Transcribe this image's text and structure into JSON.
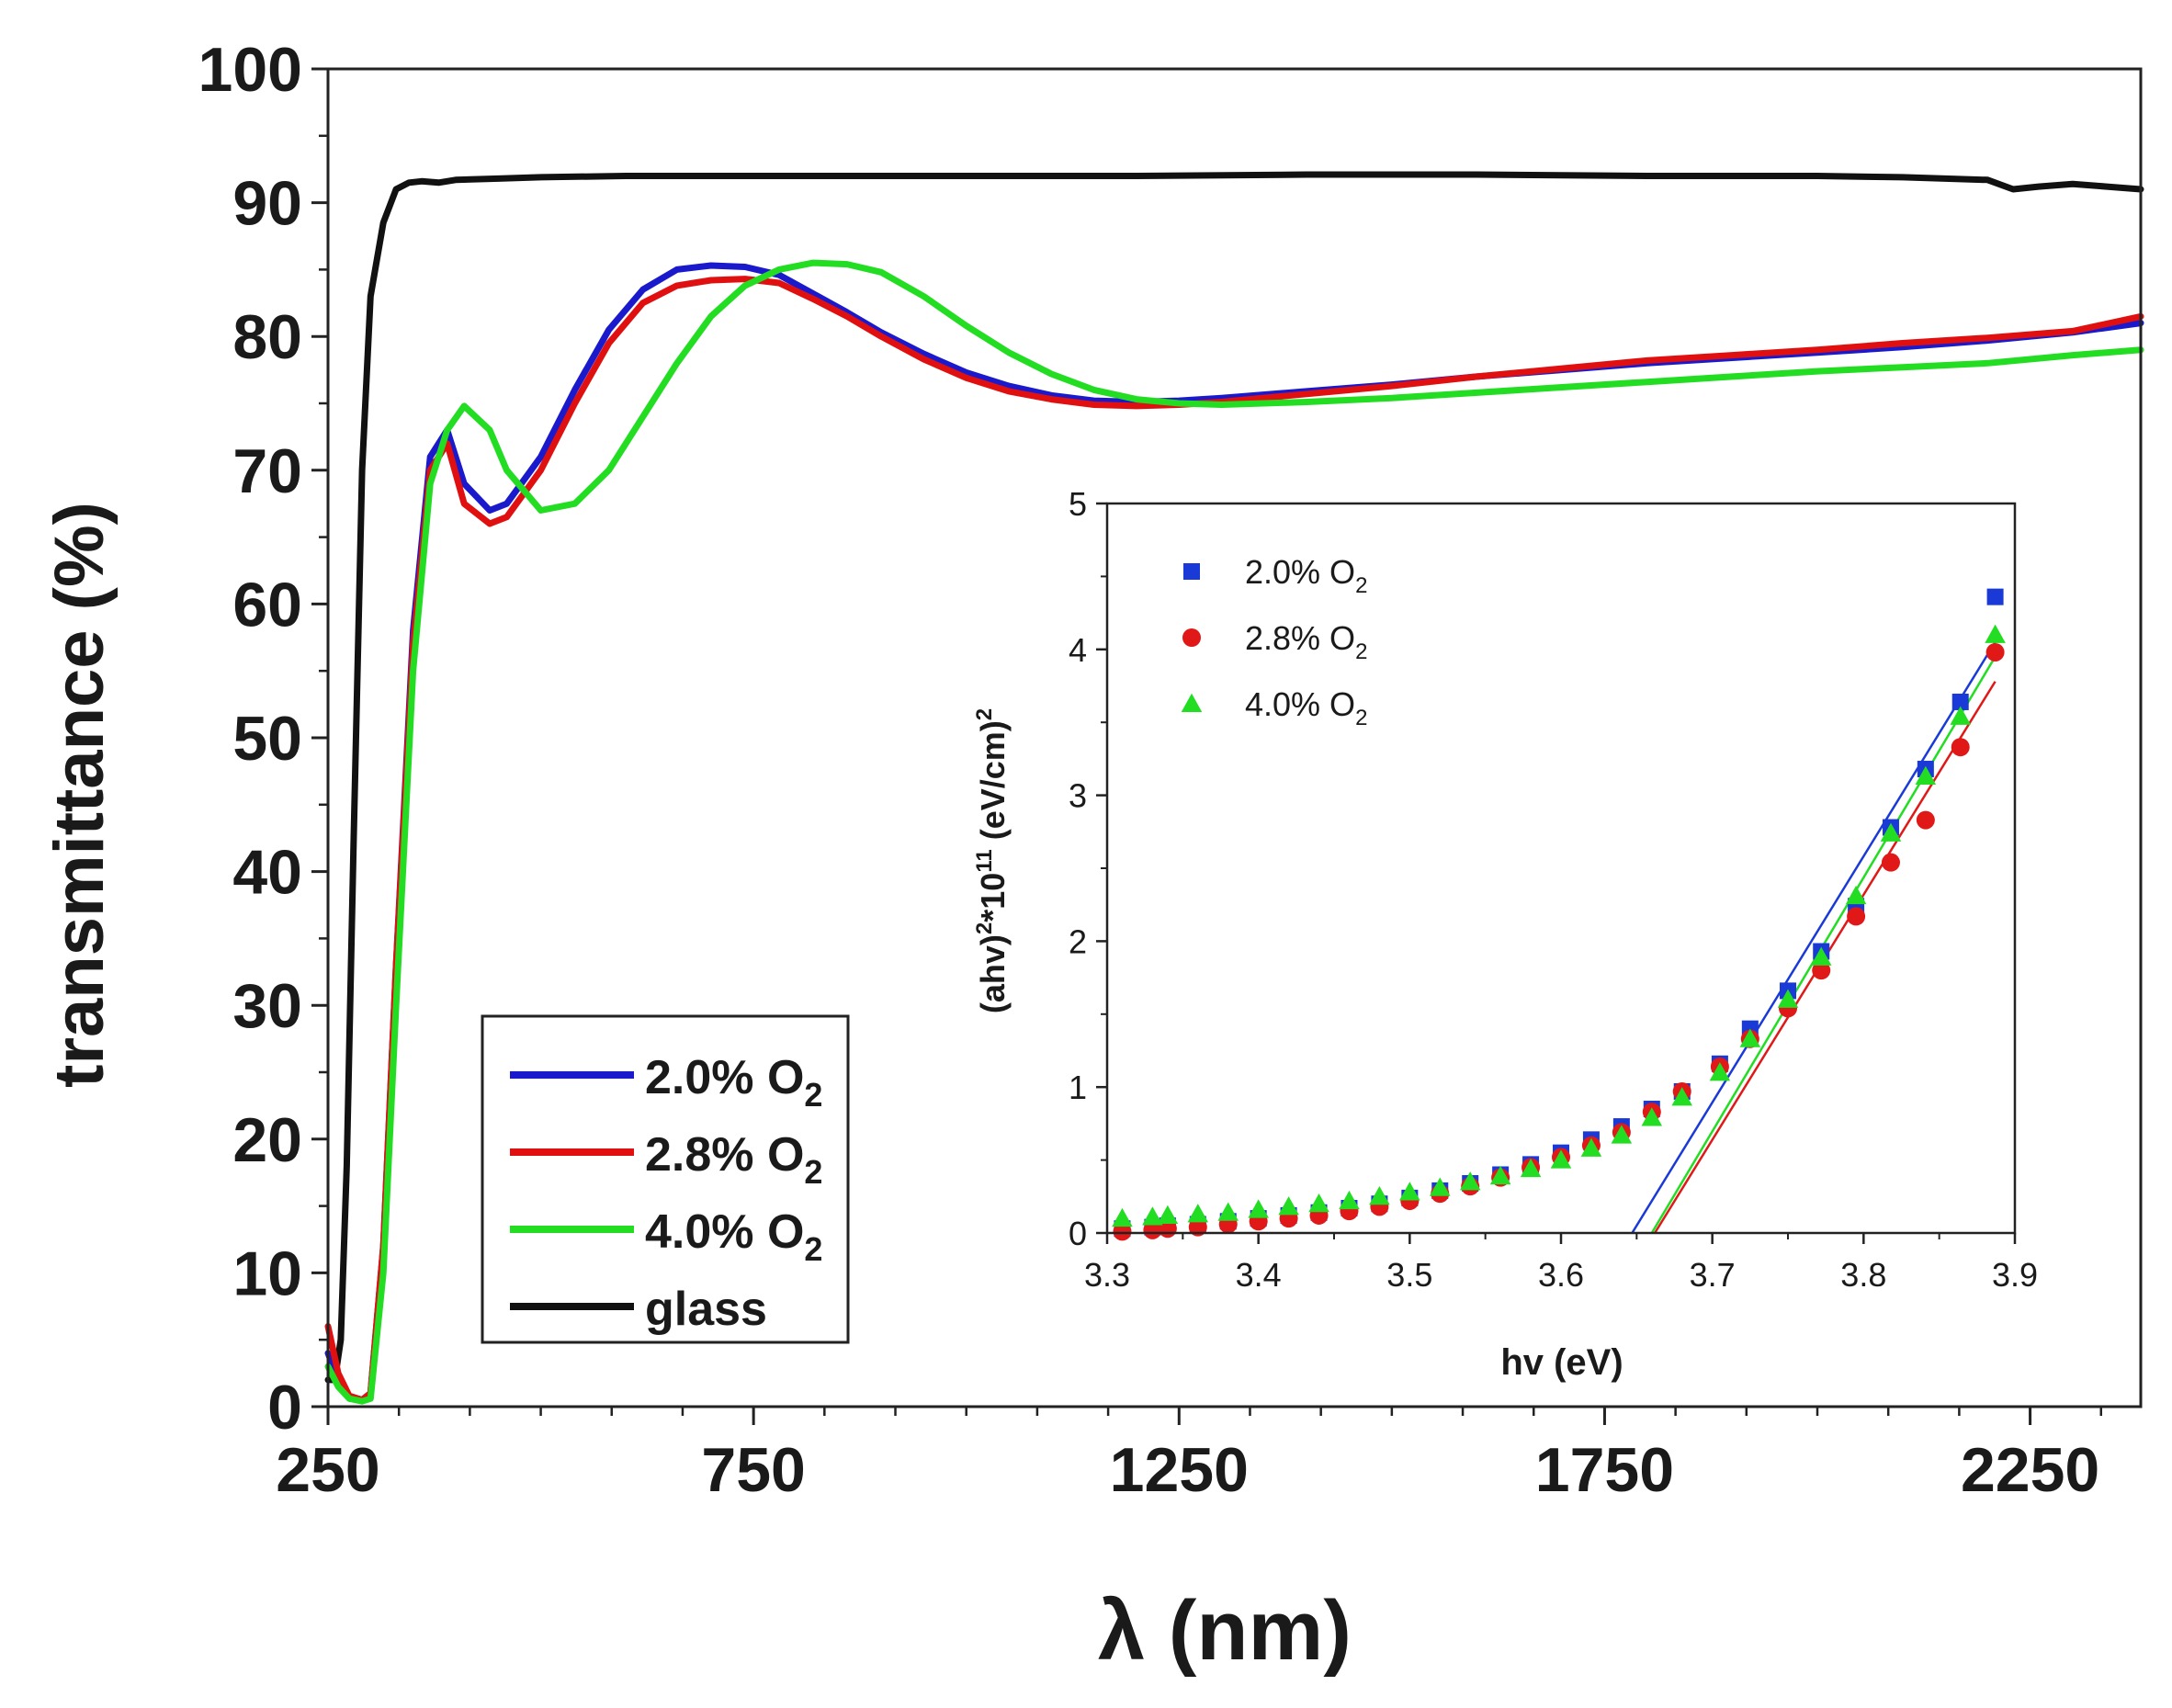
{
  "chart_data": [
    {
      "type": "line",
      "title": "",
      "xlabel": "λ (nm)",
      "ylabel": "transmittance (%)",
      "xlim": [
        250,
        2380
      ],
      "ylim": [
        0,
        100
      ],
      "x_ticks": [
        250,
        750,
        1250,
        1750,
        2250
      ],
      "y_ticks": [
        0,
        10,
        20,
        30,
        40,
        50,
        60,
        70,
        80,
        90,
        100
      ],
      "legend_position": "bottom-left",
      "series": [
        {
          "name": "2.0% O2",
          "label_main": "2.0% O",
          "label_sub": "2",
          "color": "#1a1acc",
          "x": [
            250,
            262,
            275,
            290,
            300,
            315,
            330,
            350,
            370,
            390,
            410,
            440,
            460,
            500,
            540,
            580,
            620,
            660,
            700,
            740,
            780,
            820,
            860,
            900,
            950,
            1000,
            1050,
            1100,
            1150,
            1200,
            1250,
            1300,
            1400,
            1500,
            1600,
            1700,
            1800,
            1900,
            2000,
            2100,
            2200,
            2300,
            2380
          ],
          "y": [
            4,
            2,
            0.8,
            0.5,
            1,
            12,
            33,
            58,
            71,
            73,
            69,
            67,
            67.5,
            71,
            76,
            80.5,
            83.5,
            85,
            85.3,
            85.2,
            84.6,
            83.2,
            81.8,
            80.3,
            78.7,
            77.3,
            76.3,
            75.6,
            75.2,
            75.1,
            75.2,
            75.4,
            75.9,
            76.4,
            77,
            77.5,
            78,
            78.4,
            78.8,
            79.2,
            79.7,
            80.3,
            81
          ]
        },
        {
          "name": "2.8% O2",
          "label_main": "2.8% O",
          "label_sub": "2",
          "color": "#e01010",
          "x": [
            250,
            262,
            275,
            290,
            300,
            315,
            330,
            350,
            370,
            390,
            410,
            440,
            460,
            500,
            540,
            580,
            620,
            660,
            700,
            740,
            780,
            820,
            860,
            900,
            950,
            1000,
            1050,
            1100,
            1150,
            1200,
            1250,
            1300,
            1400,
            1500,
            1600,
            1700,
            1800,
            1900,
            2000,
            2100,
            2200,
            2300,
            2380
          ],
          "y": [
            6,
            2.5,
            0.8,
            0.5,
            1,
            12,
            33,
            57,
            70,
            72,
            67.5,
            66,
            66.5,
            70,
            75,
            79.5,
            82.5,
            83.8,
            84.2,
            84.3,
            84,
            82.8,
            81.5,
            80,
            78.3,
            76.9,
            75.9,
            75.3,
            74.9,
            74.8,
            74.9,
            75.1,
            75.7,
            76.3,
            77,
            77.6,
            78.2,
            78.6,
            79,
            79.5,
            79.9,
            80.4,
            81.5
          ]
        },
        {
          "name": "4.0% O2",
          "label_main": "4.0% O",
          "label_sub": "2",
          "color": "#22dd22",
          "x": [
            250,
            262,
            275,
            290,
            300,
            315,
            330,
            350,
            370,
            390,
            410,
            440,
            460,
            500,
            540,
            580,
            620,
            660,
            700,
            740,
            780,
            820,
            860,
            900,
            950,
            1000,
            1050,
            1100,
            1150,
            1200,
            1250,
            1300,
            1400,
            1500,
            1600,
            1700,
            1800,
            1900,
            2000,
            2100,
            2200,
            2300,
            2380
          ],
          "y": [
            3,
            1.5,
            0.6,
            0.4,
            0.6,
            10,
            30,
            55,
            69,
            73,
            74.8,
            73,
            70,
            67,
            67.5,
            70,
            74,
            78,
            81.5,
            83.8,
            85,
            85.5,
            85.4,
            84.8,
            83,
            80.8,
            78.8,
            77.2,
            76,
            75.3,
            75,
            74.9,
            75.1,
            75.4,
            75.8,
            76.2,
            76.6,
            77,
            77.4,
            77.7,
            78,
            78.6,
            79
          ]
        },
        {
          "name": "glass",
          "label_main": "glass",
          "label_sub": "",
          "color": "#111111",
          "x": [
            250,
            258,
            265,
            272,
            280,
            290,
            300,
            315,
            330,
            345,
            360,
            380,
            400,
            450,
            500,
            600,
            700,
            800,
            900,
            1000,
            1200,
            1400,
            1600,
            1800,
            2000,
            2100,
            2200,
            2230,
            2260,
            2300,
            2340,
            2380
          ],
          "y": [
            2,
            2,
            5,
            18,
            42,
            70,
            83,
            88.5,
            91,
            91.5,
            91.6,
            91.5,
            91.7,
            91.8,
            91.9,
            92,
            92,
            92,
            92,
            92,
            92,
            92.1,
            92.1,
            92,
            92,
            91.9,
            91.7,
            91,
            91.2,
            91.4,
            91.2,
            91
          ]
        }
      ]
    },
    {
      "type": "scatter",
      "title": "",
      "xlabel": "hv (eV)",
      "ylabel_main": "(ahv)",
      "ylabel_sup1": "2",
      "ylabel_mid": "*10",
      "ylabel_sup2": "11",
      "ylabel_end": " (eV/cm)",
      "ylabel_sup3": "2",
      "xlim": [
        3.3,
        3.9
      ],
      "ylim": [
        0,
        5
      ],
      "x_ticks": [
        "3.3",
        "3.4",
        "3.5",
        "3.6",
        "3.7",
        "3.8",
        "3.9"
      ],
      "y_ticks": [
        "0",
        "1",
        "2",
        "3",
        "4",
        "5"
      ],
      "legend_position": "top-left",
      "series": [
        {
          "name": "2.0% O2",
          "label_main": "2.0% O",
          "label_sub": "2",
          "marker": "square",
          "color": "#1a3ad8",
          "x": [
            3.31,
            3.33,
            3.34,
            3.36,
            3.38,
            3.4,
            3.42,
            3.44,
            3.46,
            3.48,
            3.5,
            3.52,
            3.54,
            3.56,
            3.58,
            3.6,
            3.62,
            3.64,
            3.66,
            3.68,
            3.705,
            3.725,
            3.75,
            3.772,
            3.795,
            3.818,
            3.841,
            3.864,
            3.887
          ],
          "y": [
            0.03,
            0.04,
            0.05,
            0.06,
            0.08,
            0.1,
            0.12,
            0.14,
            0.17,
            0.2,
            0.24,
            0.29,
            0.34,
            0.4,
            0.47,
            0.55,
            0.64,
            0.73,
            0.85,
            0.97,
            1.16,
            1.4,
            1.66,
            1.93,
            2.24,
            2.78,
            3.18,
            3.64,
            4.36
          ],
          "fit_x": [
            3.647,
            3.887
          ],
          "fit_y": [
            0,
            4.05
          ]
        },
        {
          "name": "2.8% O2",
          "label_main": "2.8% O",
          "label_sub": "2",
          "marker": "circle",
          "color": "#e01818",
          "x": [
            3.31,
            3.33,
            3.34,
            3.36,
            3.38,
            3.4,
            3.42,
            3.44,
            3.46,
            3.48,
            3.5,
            3.52,
            3.54,
            3.56,
            3.58,
            3.6,
            3.62,
            3.64,
            3.66,
            3.68,
            3.705,
            3.725,
            3.75,
            3.772,
            3.795,
            3.818,
            3.841,
            3.864,
            3.887
          ],
          "y": [
            0.01,
            0.02,
            0.03,
            0.04,
            0.06,
            0.08,
            0.1,
            0.12,
            0.15,
            0.18,
            0.22,
            0.27,
            0.32,
            0.38,
            0.45,
            0.52,
            0.6,
            0.69,
            0.83,
            0.97,
            1.14,
            1.33,
            1.54,
            1.8,
            2.17,
            2.54,
            2.83,
            3.33,
            3.98
          ],
          "fit_x": [
            3.662,
            3.887
          ],
          "fit_y": [
            0,
            3.78
          ]
        },
        {
          "name": "4.0% O2",
          "label_main": "4.0% O",
          "label_sub": "2",
          "marker": "triangle",
          "color": "#22dd22",
          "x": [
            3.31,
            3.33,
            3.34,
            3.36,
            3.38,
            3.4,
            3.42,
            3.44,
            3.46,
            3.48,
            3.5,
            3.52,
            3.54,
            3.56,
            3.58,
            3.6,
            3.62,
            3.64,
            3.66,
            3.68,
            3.705,
            3.725,
            3.75,
            3.772,
            3.795,
            3.818,
            3.841,
            3.864,
            3.887
          ],
          "y": [
            0.1,
            0.11,
            0.12,
            0.13,
            0.14,
            0.16,
            0.18,
            0.2,
            0.22,
            0.25,
            0.28,
            0.31,
            0.35,
            0.39,
            0.44,
            0.5,
            0.58,
            0.67,
            0.79,
            0.93,
            1.1,
            1.33,
            1.6,
            1.89,
            2.31,
            2.74,
            3.13,
            3.54,
            4.1
          ],
          "fit_x": [
            3.66,
            3.887
          ],
          "fit_y": [
            0,
            3.95
          ]
        }
      ]
    }
  ]
}
